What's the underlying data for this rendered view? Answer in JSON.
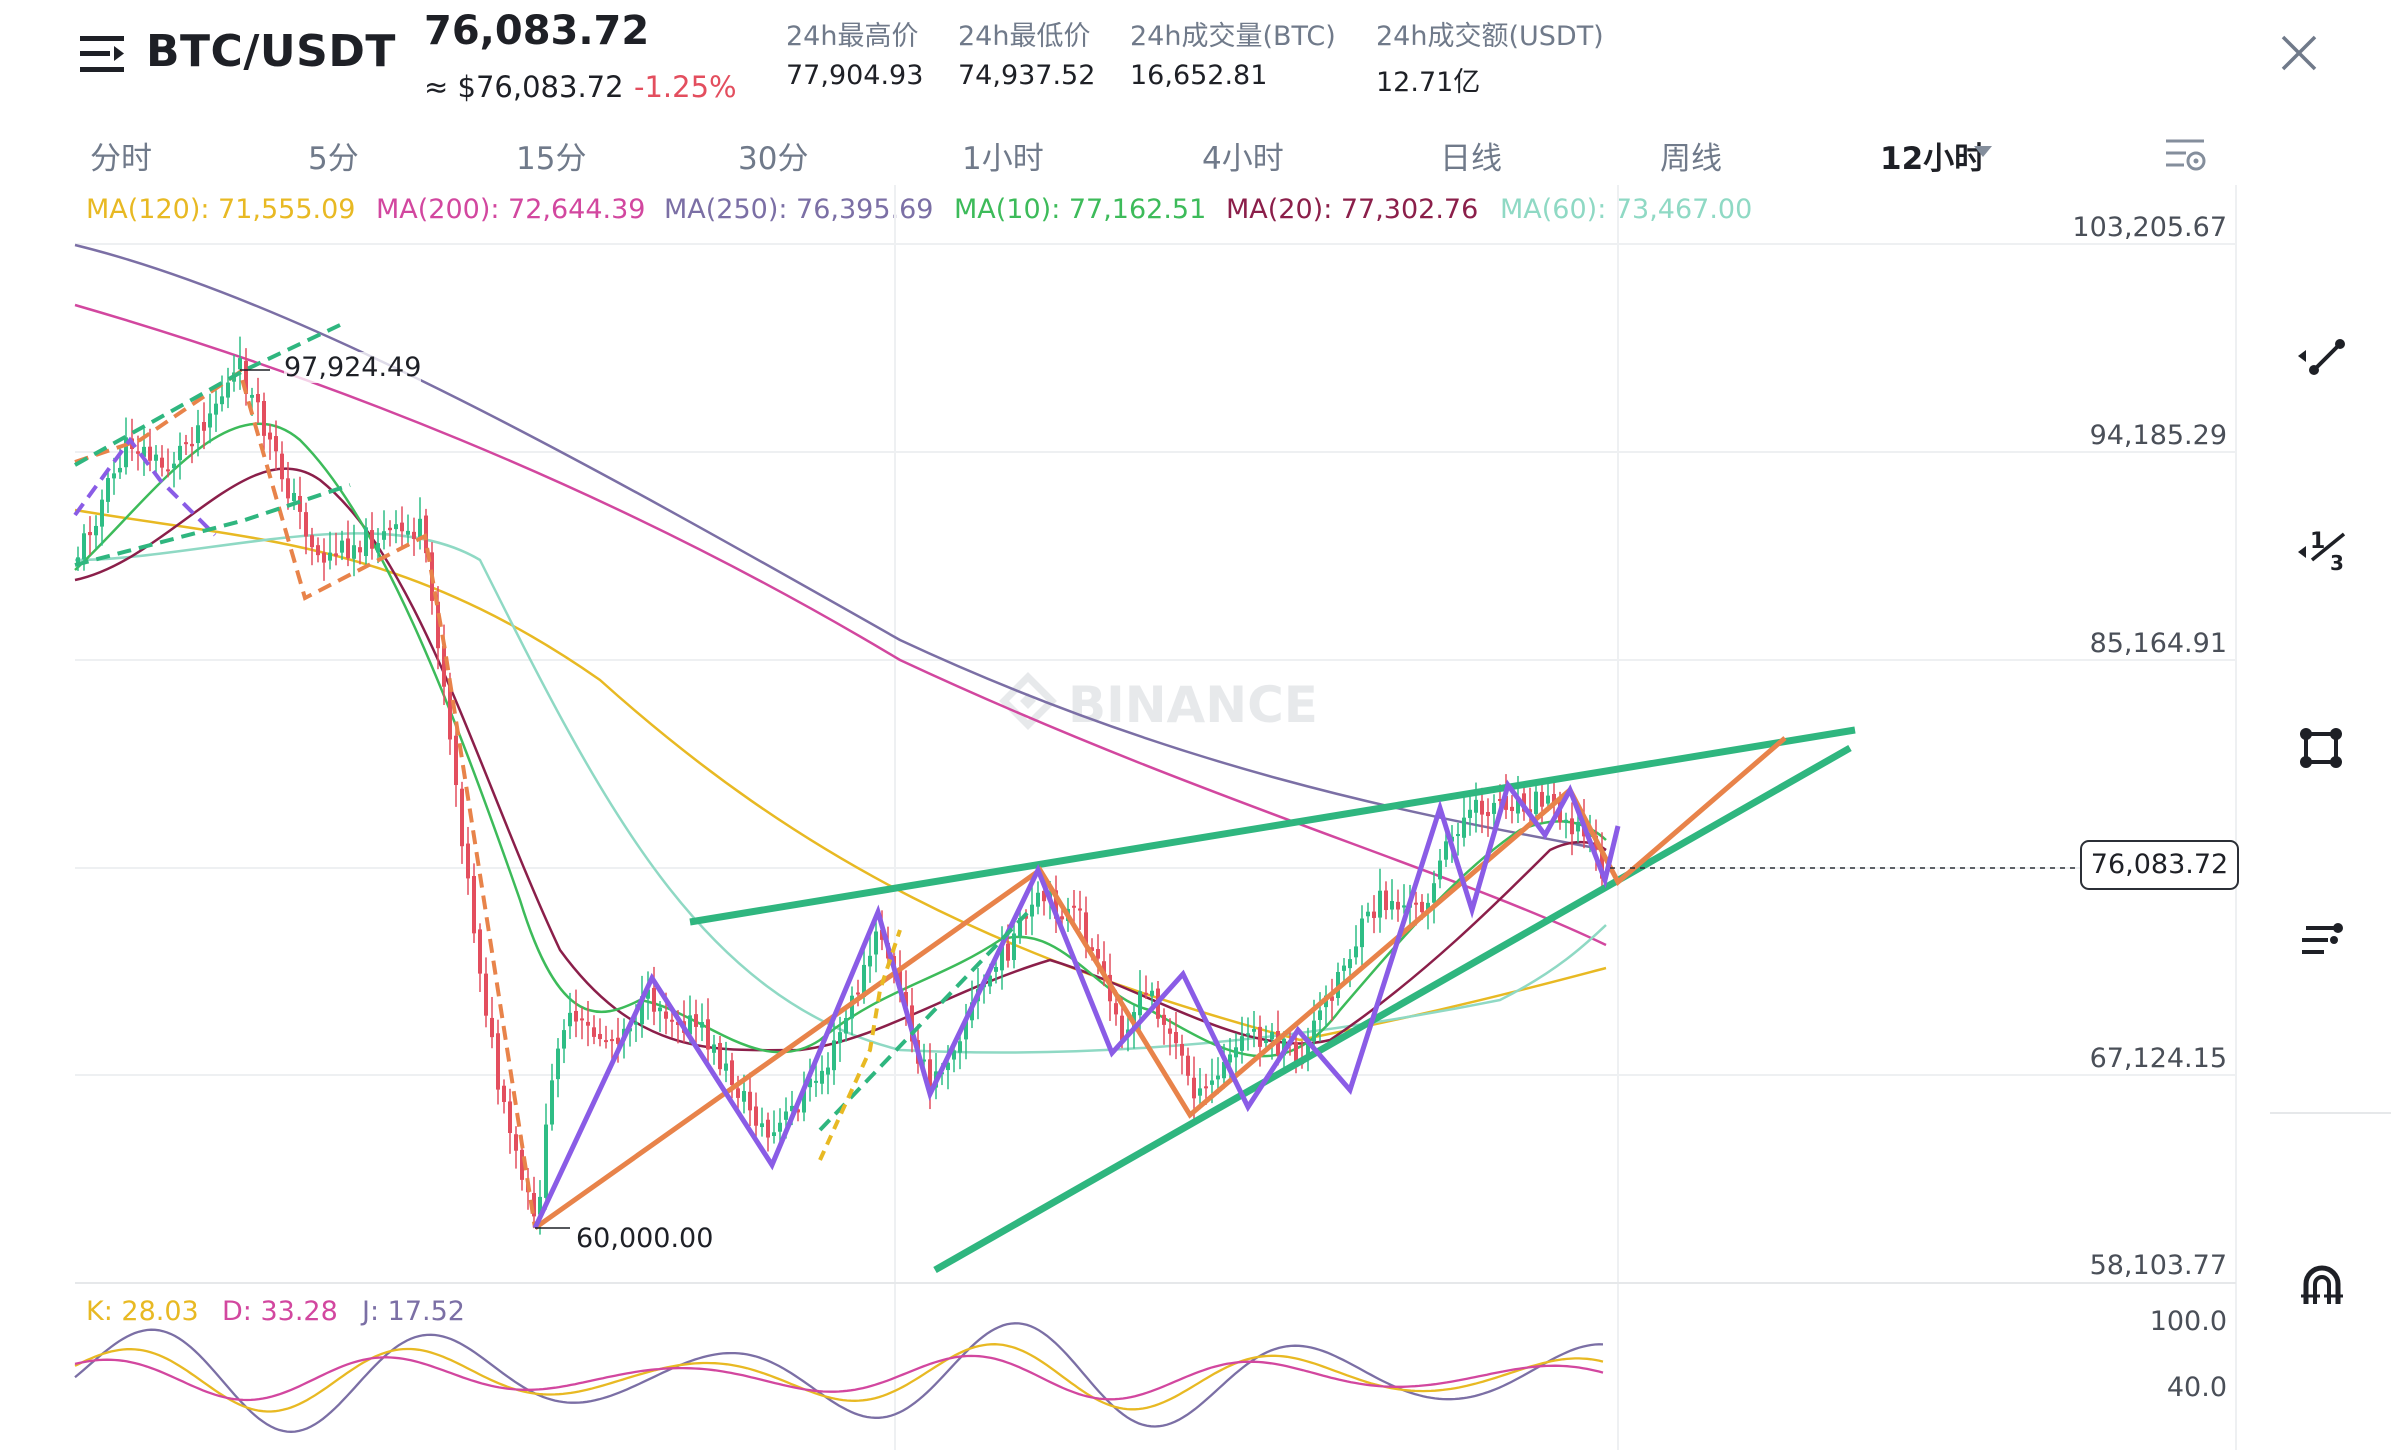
{
  "header": {
    "pair": "BTC/USDT",
    "price": "76,083.72",
    "price_usd": "≈ $76,083.72",
    "change": "-1.25%",
    "stats": [
      {
        "label": "24h最高价",
        "value": "77,904.93"
      },
      {
        "label": "24h最低价",
        "value": "74,937.52"
      },
      {
        "label": "24h成交量(BTC)",
        "value": "16,652.81"
      },
      {
        "label": "24h成交额(USDT)",
        "value": "12.71亿"
      }
    ]
  },
  "timeframes": [
    "分时",
    "5分",
    "15分",
    "30分",
    "1小时",
    "4小时",
    "日线",
    "周线",
    "12小时"
  ],
  "active_timeframe": "12小时",
  "ma_legend": [
    {
      "label": "MA(120): 71,555.09",
      "color": "#e8b923"
    },
    {
      "label": "MA(200): 72,644.39",
      "color": "#d2479f"
    },
    {
      "label": "MA(250): 76,395.69",
      "color": "#7b6fa5"
    },
    {
      "label": "MA(10): 77,162.51",
      "color": "#3dbb5a"
    },
    {
      "label": "MA(20): 77,302.76",
      "color": "#8b1f4a"
    },
    {
      "label": "MA(60): 73,467.00",
      "color": "#8fd9c4"
    }
  ],
  "price_axis": [
    "103,205.67",
    "94,185.29",
    "85,164.91",
    "67,124.15",
    "58,103.77"
  ],
  "current_price_label": "76,083.72",
  "annotations": {
    "high": "97,924.49",
    "low": "60,000.00"
  },
  "watermark": "BINANCE",
  "kdj": {
    "k": "K: 28.03",
    "d": "D: 33.28",
    "j": "J: 17.52"
  },
  "kdj_axis": [
    "100.0",
    "40.0"
  ],
  "tools": [
    "trend-line-tool-icon",
    "fibonacci-tool-icon",
    "rectangle-tool-icon",
    "indicator-list-icon",
    "magnet-icon"
  ],
  "colors": {
    "up": "#2ebd85",
    "down": "#e34e5e",
    "pattern_green": "#2fb67f",
    "zigzag_purple": "#8a5ce6",
    "zigzag_orange": "#e8834a"
  },
  "chart_data": {
    "type": "candlestick",
    "interval": "12小时",
    "y_range": [
      58103.77,
      103205.67
    ],
    "major_high": 97924.49,
    "major_low": 60000.0,
    "last_price": 76083.72,
    "moving_averages": [
      {
        "name": "MA(120)",
        "last": 71555.09
      },
      {
        "name": "MA(200)",
        "last": 72644.39
      },
      {
        "name": "MA(250)",
        "last": 76395.69
      },
      {
        "name": "MA(10)",
        "last": 77162.51
      },
      {
        "name": "MA(20)",
        "last": 77302.76
      },
      {
        "name": "MA(60)",
        "last": 73467.0
      }
    ],
    "kdj_last": {
      "K": 28.03,
      "D": 33.28,
      "J": 17.52
    },
    "kdj_range": [
      0,
      100
    ]
  }
}
